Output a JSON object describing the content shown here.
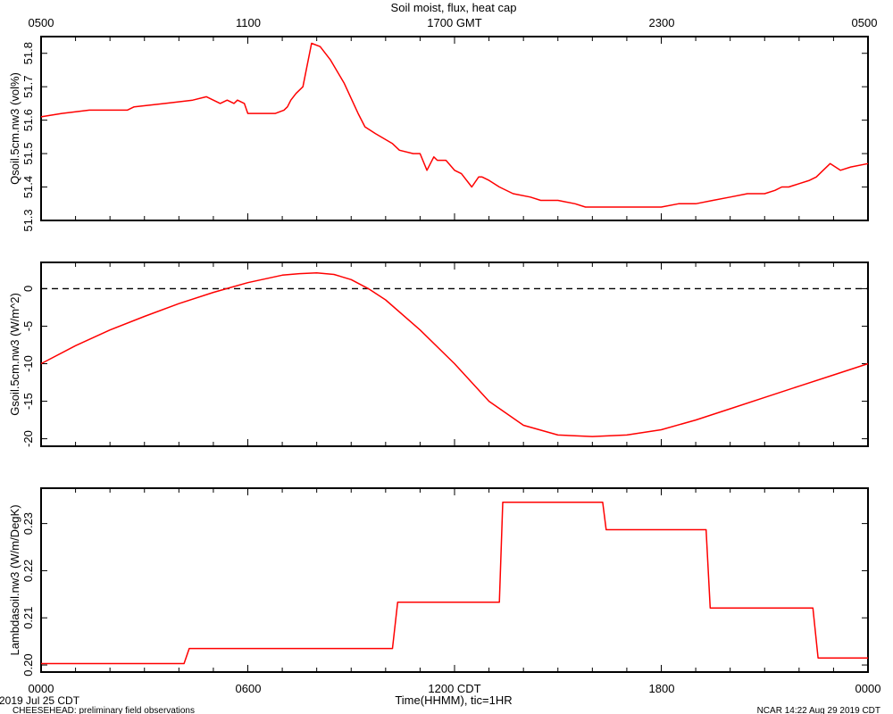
{
  "title": "Soil moist, flux, heat cap",
  "top_axis_ticks": [
    "0500",
    "1100",
    "1700 GMT",
    "2300",
    "0500"
  ],
  "bottom_axis_ticks": [
    "0000",
    "0600",
    "1200 CDT",
    "1800",
    "0000"
  ],
  "xlabel": "Time(HHMM), tic=1HR",
  "footer": {
    "date": "2019 Jul 25 CDT",
    "note": "CHEESEHEAD: preliminary field observations",
    "stamp": "NCAR 14:22 Aug 29 2019 CDT"
  },
  "colors": {
    "series": "#ff0000",
    "axes": "#000000",
    "zero_line": "#000000"
  },
  "chart_data": [
    {
      "type": "line",
      "ylabel": "Qsoil.5cm.nw3 (vol%)",
      "ylim": [
        51.3,
        51.85
      ],
      "yticks": [
        51.3,
        51.4,
        51.5,
        51.6,
        51.7,
        51.8
      ],
      "ytick_labels": [
        "51.3",
        "51.4",
        "51.5",
        "51.6",
        "51.7",
        "51.8"
      ],
      "x_hours": [
        0,
        0.6,
        1.4,
        2.5,
        2.7,
        3.6,
        4.4,
        4.8,
        5.2,
        5.4,
        5.6,
        5.7,
        5.9,
        6,
        6.4,
        6.8,
        7.05,
        7.15,
        7.25,
        7.4,
        7.6,
        7.85,
        8.1,
        8.4,
        8.8,
        9.2,
        9.4,
        9.7,
        10.2,
        10.4,
        10.8,
        11,
        11.2,
        11.4,
        11.5,
        11.75,
        12,
        12.2,
        12.5,
        12.7,
        12.8,
        13,
        13.3,
        13.7,
        14.2,
        14.5,
        15,
        15.5,
        15.8,
        16.5,
        17,
        17.5,
        18,
        18.5,
        19,
        19.5,
        20,
        20.5,
        21,
        21.3,
        21.5,
        21.7,
        22,
        22.3,
        22.5,
        22.7,
        22.9,
        23.2,
        23.5,
        24
      ],
      "y": [
        51.61,
        51.62,
        51.63,
        51.63,
        51.64,
        51.65,
        51.66,
        51.67,
        51.65,
        51.66,
        51.65,
        51.66,
        51.65,
        51.62,
        51.62,
        51.62,
        51.63,
        51.64,
        51.66,
        51.68,
        51.7,
        51.83,
        51.82,
        51.78,
        51.71,
        51.62,
        51.58,
        51.56,
        51.53,
        51.51,
        51.5,
        51.5,
        51.45,
        51.49,
        51.48,
        51.48,
        51.45,
        51.44,
        51.4,
        51.43,
        51.43,
        51.42,
        51.4,
        51.38,
        51.37,
        51.36,
        51.36,
        51.35,
        51.34,
        51.34,
        51.34,
        51.34,
        51.34,
        51.35,
        51.35,
        51.36,
        51.37,
        51.38,
        51.38,
        51.39,
        51.4,
        51.4,
        51.41,
        51.42,
        51.43,
        51.45,
        51.47,
        51.45,
        51.46,
        51.47
      ]
    },
    {
      "type": "line",
      "ylabel": "Gsoil.5cm.nw3 (W/m^2)",
      "ylim": [
        -21,
        3.5
      ],
      "yticks": [
        0,
        -5,
        -10,
        -15,
        -20
      ],
      "ytick_labels": [
        "0",
        "-5",
        "-10",
        "-15",
        "-20"
      ],
      "zero_line": true,
      "x_hours": [
        0,
        1,
        2,
        3,
        4,
        5,
        6,
        7,
        7.5,
        8,
        8.5,
        9,
        9.5,
        10,
        11,
        12,
        13,
        14,
        15,
        16,
        17,
        18,
        19,
        20,
        21,
        22,
        23,
        24
      ],
      "y": [
        -10,
        -7.6,
        -5.5,
        -3.7,
        -2,
        -0.5,
        0.8,
        1.8,
        2,
        2.1,
        1.9,
        1.2,
        0,
        -1.5,
        -5.5,
        -10,
        -15,
        -18.2,
        -19.5,
        -19.7,
        -19.5,
        -18.8,
        -17.5,
        -16,
        -14.5,
        -13,
        -11.5,
        -10
      ]
    },
    {
      "type": "line",
      "ylabel": "Lambdasoil.nw3 (W/m/DegK)",
      "ylim": [
        0.1985,
        0.2375
      ],
      "yticks": [
        0.2,
        0.21,
        0.22,
        0.23
      ],
      "ytick_labels": [
        "0.20",
        "0.21",
        "0.22",
        "0.23"
      ],
      "x_hours": [
        0,
        4.15,
        4.3,
        10.2,
        10.35,
        13.3,
        13.4,
        16.3,
        16.4,
        19.3,
        19.42,
        22.4,
        22.55,
        24
      ],
      "y": [
        0.2003,
        0.2003,
        0.2035,
        0.2035,
        0.2133,
        0.2133,
        0.2345,
        0.2345,
        0.2287,
        0.2287,
        0.2121,
        0.2121,
        0.2015,
        0.2015
      ]
    }
  ]
}
